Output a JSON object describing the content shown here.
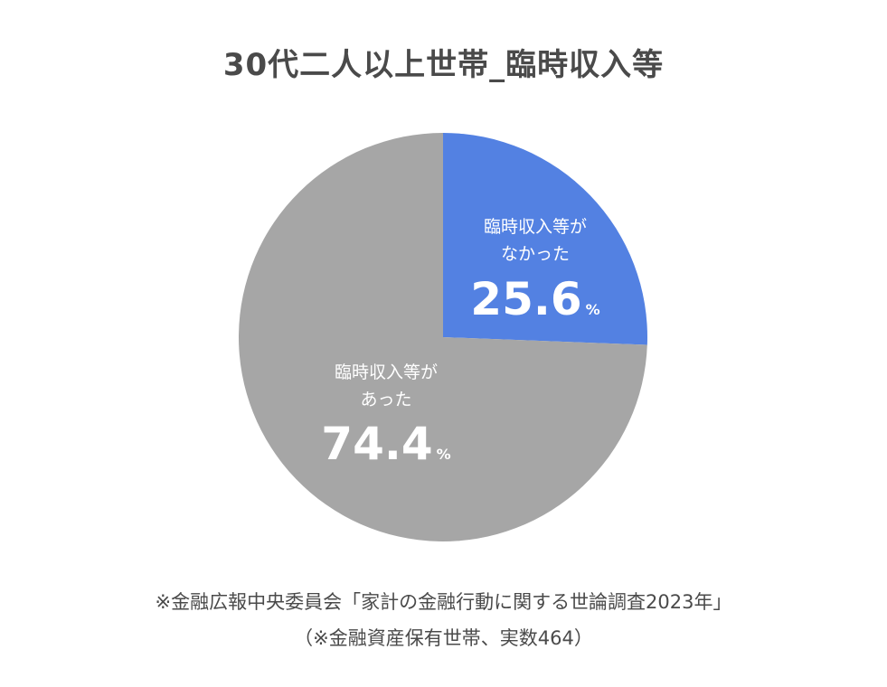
{
  "chart_data": {
    "type": "pie",
    "title": "30代二人以上世帯_臨時収入等",
    "unit": "%",
    "slices": [
      {
        "label_lines": [
          "臨時収入等が",
          "なかった"
        ],
        "value": 25.6,
        "value_text": "25.6",
        "color": "#5381e2"
      },
      {
        "label_lines": [
          "臨時収入等が",
          "あった"
        ],
        "value": 74.4,
        "value_text": "74.4",
        "color": "#a6a6a6"
      }
    ]
  },
  "notes": {
    "source": "※金融広報中央委員会「家計の金融行動に関する世論調査2023年」",
    "sample": "（※金融資産保有世帯、実数464）"
  }
}
